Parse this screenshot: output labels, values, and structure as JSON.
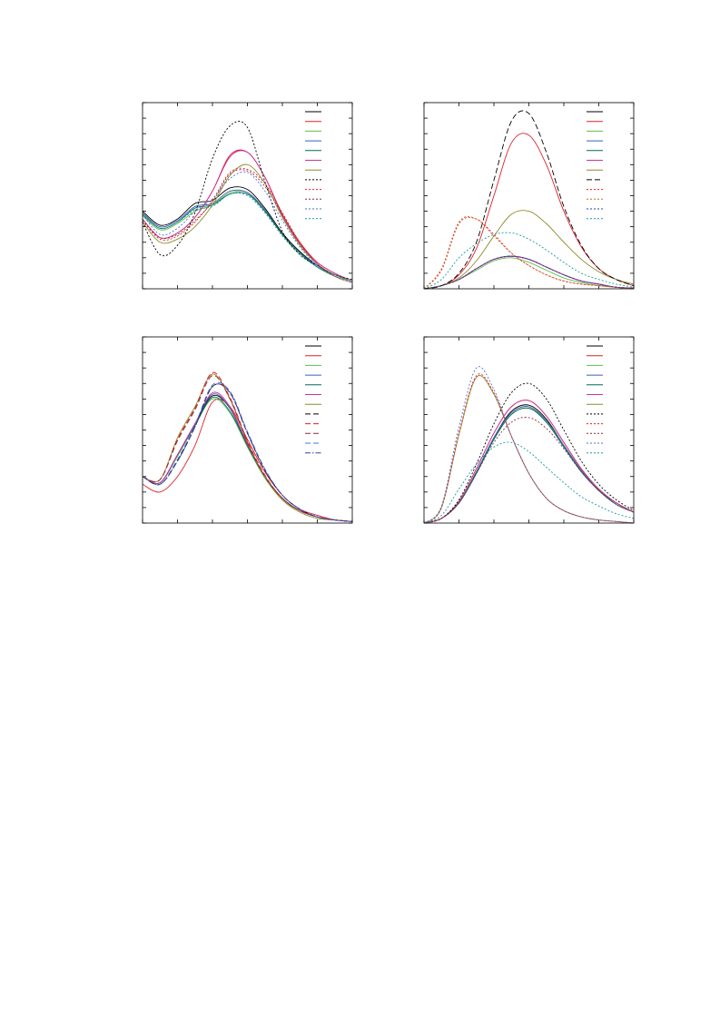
{
  "chart_data": [
    {
      "type": "line",
      "xlim": [
        0,
        6
      ],
      "ylim": [
        0,
        12
      ],
      "xticks": [
        0,
        1,
        2,
        3,
        4,
        5,
        6
      ],
      "yticks": [
        0,
        1,
        2,
        3,
        4,
        5,
        6,
        7,
        8,
        9,
        10,
        11,
        12
      ],
      "x": [
        0,
        0.5,
        1,
        1.5,
        2,
        2.5,
        3,
        3.5,
        4,
        4.5,
        5,
        5.5,
        6
      ],
      "series": [
        {
          "color": "#000000",
          "dash": "solid",
          "values": [
            5.0,
            4.1,
            4.5,
            5.5,
            5.7,
            6.5,
            6.4,
            5.2,
            3.6,
            2.4,
            1.5,
            0.9,
            0.5
          ]
        },
        {
          "color": "#e0202a",
          "dash": "solid",
          "values": [
            4.5,
            3.3,
            3.6,
            4.6,
            6.3,
            8.6,
            8.8,
            7.2,
            4.8,
            3.0,
            1.7,
            1.0,
            0.5
          ]
        },
        {
          "color": "#5cbf4a",
          "dash": "solid",
          "values": [
            4.7,
            3.8,
            4.2,
            5.0,
            5.4,
            6.2,
            6.2,
            5.0,
            3.5,
            2.3,
            1.4,
            0.8,
            0.5
          ]
        },
        {
          "color": "#3a5fb8",
          "dash": "solid",
          "values": [
            4.9,
            4.0,
            4.4,
            5.3,
            5.5,
            6.3,
            6.2,
            5.1,
            3.5,
            2.3,
            1.5,
            0.9,
            0.5
          ]
        },
        {
          "color": "#006a5a",
          "dash": "solid",
          "values": [
            4.8,
            3.9,
            4.3,
            5.2,
            5.4,
            6.1,
            6.1,
            5.0,
            3.5,
            2.3,
            1.4,
            0.9,
            0.5
          ]
        },
        {
          "color": "#cc3399",
          "dash": "solid",
          "values": [
            4.5,
            3.3,
            3.6,
            4.6,
            6.3,
            8.5,
            8.8,
            7.2,
            4.7,
            2.9,
            1.7,
            1.0,
            0.5
          ]
        },
        {
          "color": "#8c8c2a",
          "dash": "solid",
          "values": [
            4.3,
            3.0,
            3.2,
            4.0,
            5.4,
            7.3,
            8.0,
            6.8,
            4.6,
            2.8,
            1.6,
            0.9,
            0.5
          ]
        },
        {
          "color": "#000000",
          "dash": "dotted",
          "values": [
            4.3,
            2.2,
            2.8,
            4.9,
            8.4,
            10.5,
            10.4,
            6.9,
            3.7,
            2.2,
            1.5,
            0.9,
            0.6
          ]
        },
        {
          "color": "#e0202a",
          "dash": "dotted",
          "values": [
            4.4,
            3.2,
            3.4,
            4.3,
            5.7,
            7.5,
            7.7,
            6.8,
            4.9,
            3.0,
            1.6,
            0.8,
            0.4
          ]
        },
        {
          "color": "#8a2a3a",
          "dash": "dotted",
          "values": [
            4.4,
            3.3,
            3.5,
            4.4,
            5.6,
            7.4,
            7.6,
            6.6,
            4.8,
            2.9,
            1.6,
            0.8,
            0.4
          ]
        },
        {
          "color": "#5070d0",
          "dash": "dotted",
          "values": [
            4.8,
            3.5,
            3.9,
            5.0,
            5.8,
            7.1,
            7.5,
            6.3,
            4.4,
            2.7,
            1.5,
            0.9,
            0.5
          ]
        },
        {
          "color": "#1a9a9a",
          "dash": "dotted",
          "values": [
            4.9,
            3.9,
            4.3,
            5.1,
            5.3,
            6.1,
            6.0,
            4.9,
            3.4,
            2.2,
            1.4,
            0.8,
            0.4
          ]
        }
      ]
    },
    {
      "type": "line",
      "xlim": [
        0,
        6
      ],
      "ylim": [
        0,
        12
      ],
      "xticks": [
        0,
        1,
        2,
        3,
        4,
        5,
        6
      ],
      "yticks": [
        0,
        1,
        2,
        3,
        4,
        5,
        6,
        7,
        8,
        9,
        10,
        11,
        12
      ],
      "x": [
        0,
        0.5,
        1,
        1.5,
        2,
        2.5,
        3,
        3.5,
        4,
        4.5,
        5,
        5.5,
        6
      ],
      "series": [
        {
          "color": "#000000",
          "dash": "solid",
          "values": [
            0,
            0.2,
            0.6,
            1.3,
            1.9,
            2.1,
            1.9,
            1.4,
            0.9,
            0.5,
            0.3,
            0.1,
            0.05
          ]
        },
        {
          "color": "#e0202a",
          "dash": "solid",
          "values": [
            0,
            0.2,
            0.9,
            2.6,
            6.0,
            9.4,
            9.9,
            8.0,
            5.0,
            2.7,
            1.3,
            0.6,
            0.2
          ]
        },
        {
          "color": "#5cbf4a",
          "dash": "solid",
          "values": [
            0,
            0.2,
            0.6,
            1.2,
            1.8,
            2.0,
            1.7,
            1.2,
            0.7,
            0.4,
            0.2,
            0.1,
            0.05
          ]
        },
        {
          "color": "#3a5fb8",
          "dash": "solid",
          "values": [
            0,
            0.2,
            0.6,
            1.3,
            1.9,
            2.1,
            1.9,
            1.4,
            0.9,
            0.5,
            0.3,
            0.1,
            0.05
          ]
        },
        {
          "color": "#006a5a",
          "dash": "solid",
          "values": [
            0,
            0.2,
            0.6,
            1.3,
            1.9,
            2.1,
            1.9,
            1.4,
            0.9,
            0.5,
            0.3,
            0.1,
            0.05
          ]
        },
        {
          "color": "#cc3399",
          "dash": "solid",
          "values": [
            0,
            0.2,
            0.6,
            1.3,
            1.9,
            2.1,
            1.9,
            1.4,
            0.9,
            0.5,
            0.3,
            0.1,
            0.05
          ]
        },
        {
          "color": "#8c8c2a",
          "dash": "solid",
          "values": [
            0,
            0.2,
            0.7,
            1.8,
            3.4,
            4.8,
            5.0,
            4.2,
            3.0,
            1.9,
            1.1,
            0.6,
            0.3
          ]
        },
        {
          "color": "#000000",
          "dash": "dashed",
          "values": [
            0,
            0.2,
            1.0,
            3.0,
            7.0,
            10.8,
            11.3,
            8.8,
            5.3,
            2.8,
            1.3,
            0.6,
            0.2
          ]
        },
        {
          "color": "#e0202a",
          "dash": "dotted",
          "values": [
            0,
            1.2,
            4.2,
            4.5,
            3.5,
            2.3,
            1.5,
            0.9,
            0.5,
            0.3,
            0.2,
            0.1,
            0
          ]
        },
        {
          "color": "#c86a1a",
          "dash": "dotted",
          "values": [
            0,
            1.3,
            4.3,
            4.5,
            3.4,
            2.3,
            1.5,
            0.9,
            0.5,
            0.3,
            0.2,
            0.1,
            0
          ]
        },
        {
          "color": "#3040a0",
          "dash": "dotted",
          "values": [
            0,
            0.2,
            0.6,
            1.3,
            1.9,
            2.1,
            1.9,
            1.4,
            0.9,
            0.5,
            0.3,
            0.1,
            0.05
          ]
        },
        {
          "color": "#1a9a9a",
          "dash": "dotted",
          "values": [
            0,
            0.6,
            2.0,
            2.9,
            3.5,
            3.6,
            3.2,
            2.5,
            1.7,
            1.0,
            0.6,
            0.3,
            0.1
          ]
        }
      ]
    },
    {
      "type": "line",
      "xlim": [
        0,
        6
      ],
      "ylim": [
        0,
        12
      ],
      "xticks": [
        0,
        1,
        2,
        3,
        4,
        5,
        6
      ],
      "yticks": [
        0,
        1,
        2,
        3,
        4,
        5,
        6,
        7,
        8,
        9,
        10,
        11,
        12
      ],
      "x": [
        0,
        0.5,
        1,
        1.5,
        2,
        2.5,
        3,
        3.5,
        4,
        4.5,
        5,
        5.5,
        6
      ],
      "series": [
        {
          "color": "#000000",
          "dash": "solid",
          "values": [
            3.0,
            2.6,
            4.4,
            6.4,
            8.2,
            7.4,
            5.1,
            3.0,
            1.6,
            0.8,
            0.4,
            0.2,
            0.1
          ]
        },
        {
          "color": "#e0202a",
          "dash": "solid",
          "values": [
            2.5,
            2.0,
            3.0,
            5.0,
            7.8,
            7.5,
            5.4,
            3.3,
            1.8,
            0.9,
            0.5,
            0.2,
            0.1
          ]
        },
        {
          "color": "#5cbf4a",
          "dash": "solid",
          "values": [
            3.0,
            2.6,
            4.3,
            6.3,
            8.0,
            7.1,
            4.9,
            2.9,
            1.5,
            0.8,
            0.4,
            0.2,
            0.1
          ]
        },
        {
          "color": "#3a5fb8",
          "dash": "solid",
          "values": [
            3.0,
            2.6,
            4.4,
            6.4,
            8.3,
            7.4,
            5.0,
            3.0,
            1.6,
            0.8,
            0.4,
            0.2,
            0.1
          ]
        },
        {
          "color": "#006a5a",
          "dash": "solid",
          "values": [
            3.0,
            2.6,
            4.4,
            6.3,
            8.1,
            7.2,
            5.0,
            3.0,
            1.6,
            0.8,
            0.4,
            0.2,
            0.1
          ]
        },
        {
          "color": "#cc3399",
          "dash": "solid",
          "values": [
            3.0,
            2.6,
            4.4,
            6.4,
            8.4,
            7.5,
            5.1,
            3.0,
            1.6,
            0.8,
            0.4,
            0.2,
            0.1
          ]
        },
        {
          "color": "#8c8c2a",
          "dash": "solid",
          "values": [
            3.0,
            2.8,
            5.5,
            7.5,
            9.6,
            8.0,
            5.2,
            3.0,
            1.5,
            0.7,
            0.3,
            0.2,
            0.1
          ]
        },
        {
          "color": "#000000",
          "dash": "dashed",
          "values": [
            3.0,
            2.5,
            4.0,
            6.2,
            8.8,
            8.4,
            5.8,
            3.4,
            1.8,
            0.9,
            0.4,
            0.2,
            0.1
          ]
        },
        {
          "color": "#e0202a",
          "dash": "dashed",
          "values": [
            3.0,
            2.8,
            5.4,
            7.4,
            9.7,
            8.1,
            5.3,
            3.1,
            1.6,
            0.8,
            0.4,
            0.2,
            0.1
          ]
        },
        {
          "color": "#8a2a3a",
          "dash": "dashed",
          "values": [
            3.0,
            2.8,
            5.3,
            7.3,
            9.5,
            8.0,
            5.2,
            3.0,
            1.6,
            0.8,
            0.4,
            0.2,
            0.1
          ]
        },
        {
          "color": "#5070d0",
          "dash": "dashed",
          "values": [
            3.0,
            2.5,
            4.1,
            6.3,
            8.9,
            8.5,
            5.9,
            3.5,
            1.8,
            0.9,
            0.4,
            0.2,
            0.1
          ]
        },
        {
          "color": "#3040a0",
          "dash": "dashdot",
          "values": [
            3.0,
            2.5,
            4.0,
            6.2,
            8.8,
            8.4,
            5.8,
            3.4,
            1.8,
            0.9,
            0.4,
            0.2,
            0.1
          ]
        }
      ]
    },
    {
      "type": "line",
      "xlim": [
        0,
        6
      ],
      "ylim": [
        0,
        12
      ],
      "xticks": [
        0,
        1,
        2,
        3,
        4,
        5,
        6
      ],
      "yticks": [
        0,
        1,
        2,
        3,
        4,
        5,
        6,
        7,
        8,
        9,
        10,
        11,
        12
      ],
      "x": [
        0,
        0.5,
        1,
        1.5,
        2,
        2.5,
        3,
        3.5,
        4,
        4.5,
        5,
        5.5,
        6
      ],
      "series": [
        {
          "color": "#000000",
          "dash": "solid",
          "values": [
            0,
            0.3,
            1.3,
            3.3,
            5.5,
            7.2,
            7.6,
            6.7,
            5.0,
            3.4,
            2.1,
            1.3,
            0.7
          ]
        },
        {
          "color": "#e0202a",
          "dash": "solid",
          "values": [
            0,
            0.3,
            1.4,
            3.5,
            5.8,
            7.5,
            7.9,
            6.9,
            5.2,
            3.5,
            2.2,
            1.3,
            0.7
          ]
        },
        {
          "color": "#5cbf4a",
          "dash": "solid",
          "values": [
            0,
            0.3,
            1.3,
            3.3,
            5.4,
            7.0,
            7.4,
            6.6,
            5.0,
            3.4,
            2.1,
            1.3,
            0.7
          ]
        },
        {
          "color": "#3a5fb8",
          "dash": "solid",
          "values": [
            0,
            0.3,
            1.3,
            3.3,
            5.5,
            7.1,
            7.5,
            6.6,
            5.0,
            3.4,
            2.1,
            1.3,
            0.7
          ]
        },
        {
          "color": "#006a5a",
          "dash": "solid",
          "values": [
            0,
            0.3,
            1.3,
            3.2,
            5.4,
            7.0,
            7.4,
            6.5,
            4.9,
            3.3,
            2.1,
            1.2,
            0.7
          ]
        },
        {
          "color": "#cc3399",
          "dash": "solid",
          "values": [
            0,
            0.3,
            1.4,
            3.5,
            5.8,
            7.5,
            7.9,
            6.9,
            5.2,
            3.5,
            2.2,
            1.3,
            0.7
          ]
        },
        {
          "color": "#8c8c2a",
          "dash": "solid",
          "values": [
            0,
            1.0,
            5.7,
            9.4,
            8.3,
            5.6,
            3.2,
            1.6,
            0.8,
            0.4,
            0.2,
            0.1,
            0
          ]
        },
        {
          "color": "#000000",
          "dash": "dotted",
          "values": [
            0,
            0.3,
            1.5,
            3.8,
            6.4,
            8.4,
            9.0,
            8.0,
            6.0,
            4.0,
            2.5,
            1.5,
            0.8
          ]
        },
        {
          "color": "#e0202a",
          "dash": "dotted",
          "values": [
            0,
            1.0,
            5.8,
            9.5,
            8.4,
            5.6,
            3.2,
            1.6,
            0.8,
            0.4,
            0.2,
            0.1,
            0
          ]
        },
        {
          "color": "#8a2a3a",
          "dash": "dotted",
          "values": [
            0,
            0.3,
            1.3,
            3.2,
            5.2,
            6.5,
            6.8,
            6.1,
            4.8,
            3.3,
            2.1,
            1.2,
            0.7
          ]
        },
        {
          "color": "#5070d0",
          "dash": "dotted",
          "values": [
            0,
            1.1,
            6.2,
            10.0,
            8.6,
            5.6,
            3.2,
            1.6,
            0.8,
            0.4,
            0.2,
            0.1,
            0
          ]
        },
        {
          "color": "#1a9a9a",
          "dash": "dotted",
          "values": [
            0,
            0.5,
            2.2,
            3.8,
            4.9,
            5.2,
            4.6,
            3.6,
            2.6,
            1.7,
            1.1,
            0.6,
            0.3
          ]
        }
      ]
    }
  ]
}
